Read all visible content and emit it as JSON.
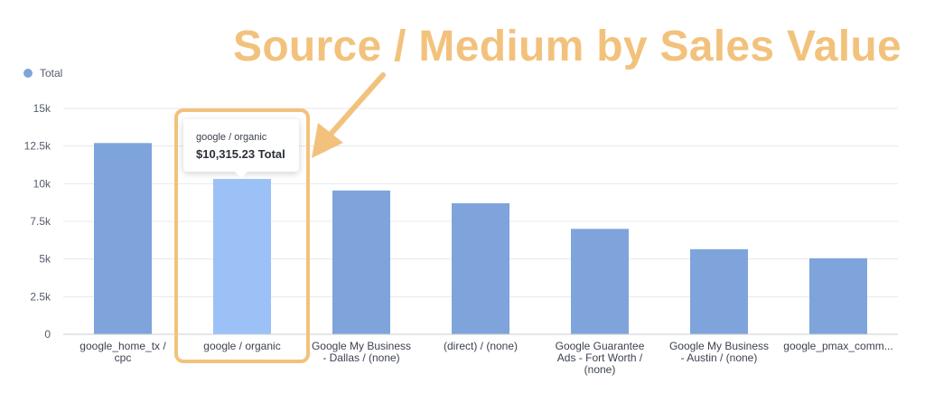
{
  "overlay_title": "Source / Medium by Sales Value",
  "legend": {
    "label": "Total",
    "color": "#7FA4DB"
  },
  "tooltip": {
    "label": "google / organic",
    "value": "$10,315.23 Total"
  },
  "colors": {
    "bar": "#7FA4DB",
    "bar_highlight": "#9CC1F7",
    "highlight_box": "#F2C27D",
    "arrow": "#F2C27D",
    "grid": "#E6E8EE",
    "axis_text": "#555b6e"
  },
  "chart_data": {
    "type": "bar",
    "title": "",
    "xlabel": "",
    "ylabel": "",
    "ylim": [
      0,
      15000
    ],
    "yticks": [
      0,
      2500,
      5000,
      7500,
      10000,
      12500,
      15000
    ],
    "ytick_labels": [
      "0",
      "2.5k",
      "5k",
      "7.5k",
      "10k",
      "12.5k",
      "15k"
    ],
    "legend_position": "top-left",
    "grid": true,
    "highlight_index": 1,
    "categories": [
      [
        "google_home_tx /",
        "cpc"
      ],
      [
        "google / organic"
      ],
      [
        "Google My Business",
        "- Dallas / (none)"
      ],
      [
        "(direct) / (none)"
      ],
      [
        "Google Guarantee",
        "Ads - Fort Worth /",
        "(none)"
      ],
      [
        "Google My Business",
        "- Austin / (none)"
      ],
      [
        "google_pmax_comm..."
      ]
    ],
    "series": [
      {
        "name": "Total",
        "values": [
          12700,
          10315.23,
          9550,
          8700,
          7000,
          5650,
          5050
        ]
      }
    ]
  }
}
